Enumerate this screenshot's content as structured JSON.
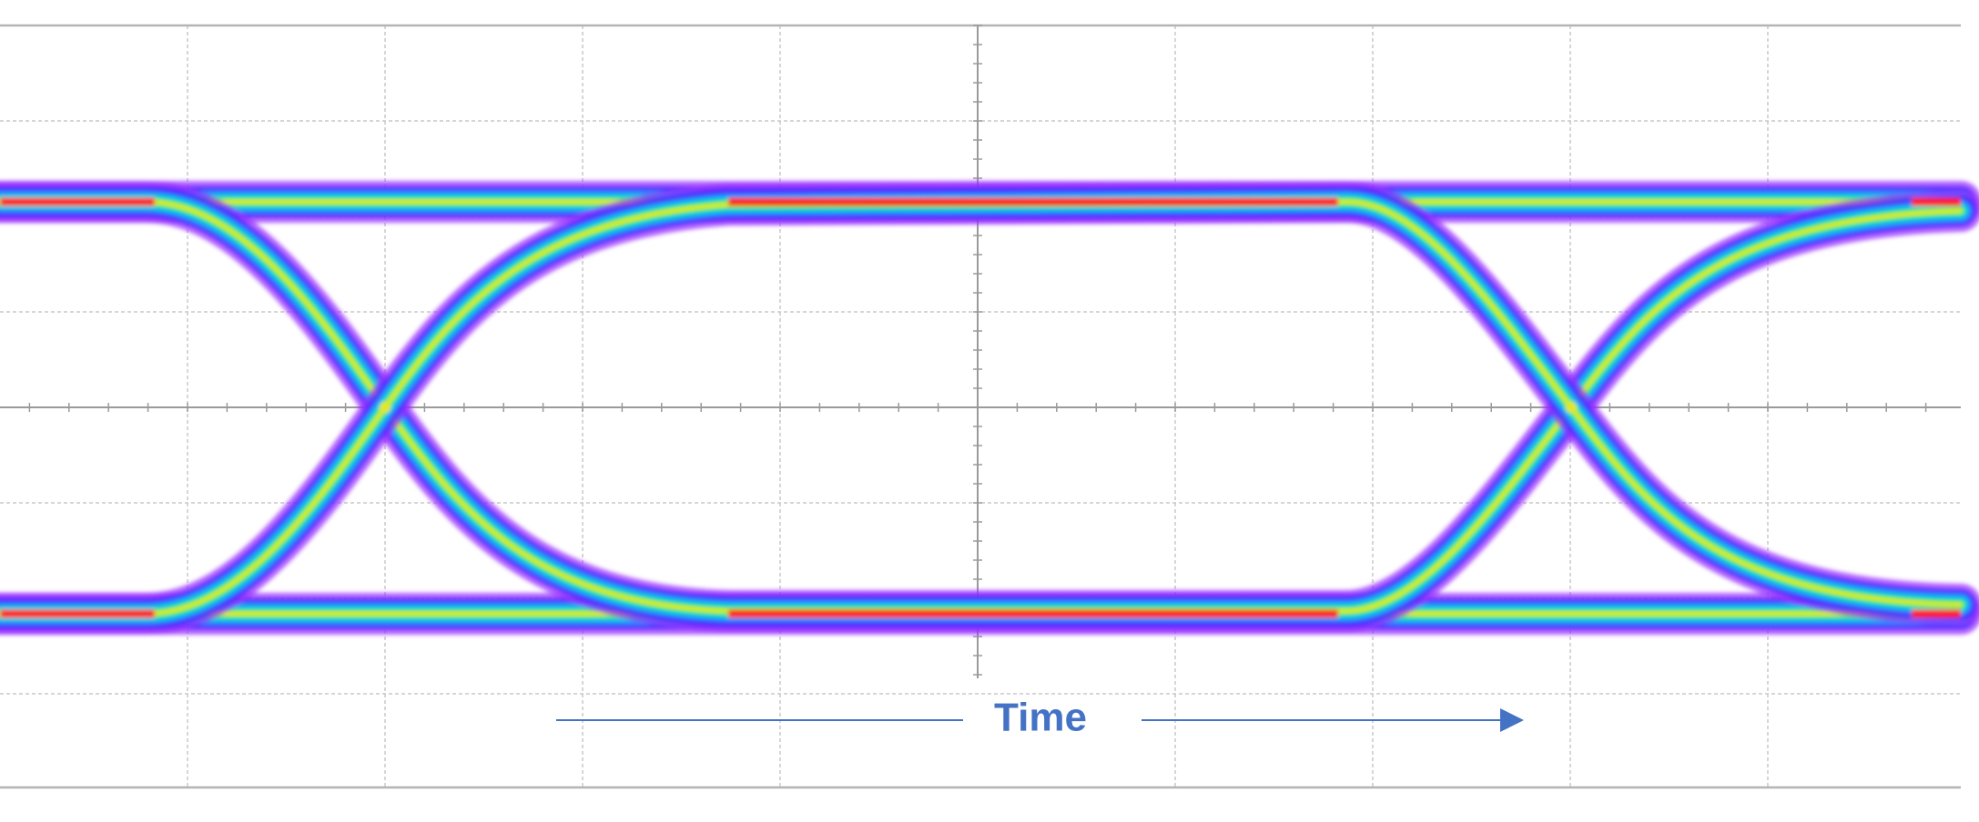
{
  "axis_label": "Time"
}
